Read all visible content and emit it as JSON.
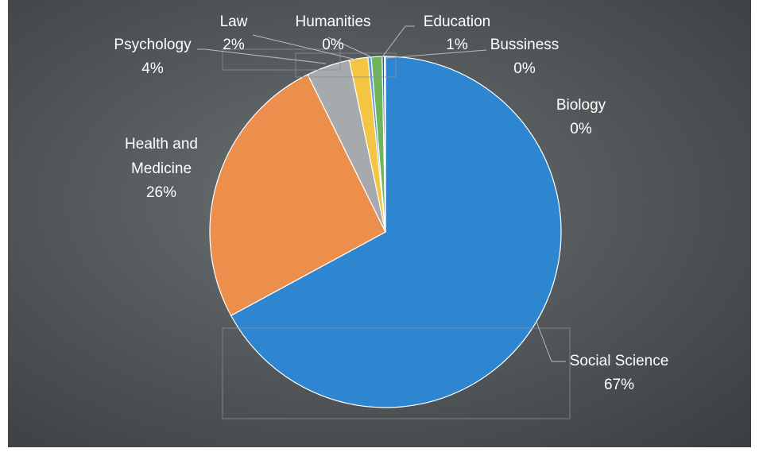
{
  "chart_data": {
    "type": "pie",
    "title": "",
    "slices": [
      {
        "name": "Social Science",
        "label": "67%",
        "value": 67.1,
        "color": "#2e86d0"
      },
      {
        "name": "Health and Medicine",
        "label": "26%",
        "value": 25.6,
        "color": "#ec8f4c"
      },
      {
        "name": "Psychology",
        "label": "4%",
        "value": 4.0,
        "color": "#a7aaac"
      },
      {
        "name": "Law",
        "label": "2%",
        "value": 1.7,
        "color": "#f4c542"
      },
      {
        "name": "Humanities",
        "label": "0%",
        "value": 0.3,
        "color": "#5b9bd5"
      },
      {
        "name": "Education",
        "label": "1%",
        "value": 1.0,
        "color": "#6fb35a"
      },
      {
        "name": "Bussiness",
        "label": "0%",
        "value": 0.2,
        "color": "#2d5a8a"
      },
      {
        "name": "Biology",
        "label": "0%",
        "value": 0.1,
        "color": "#a25a2c"
      }
    ]
  }
}
